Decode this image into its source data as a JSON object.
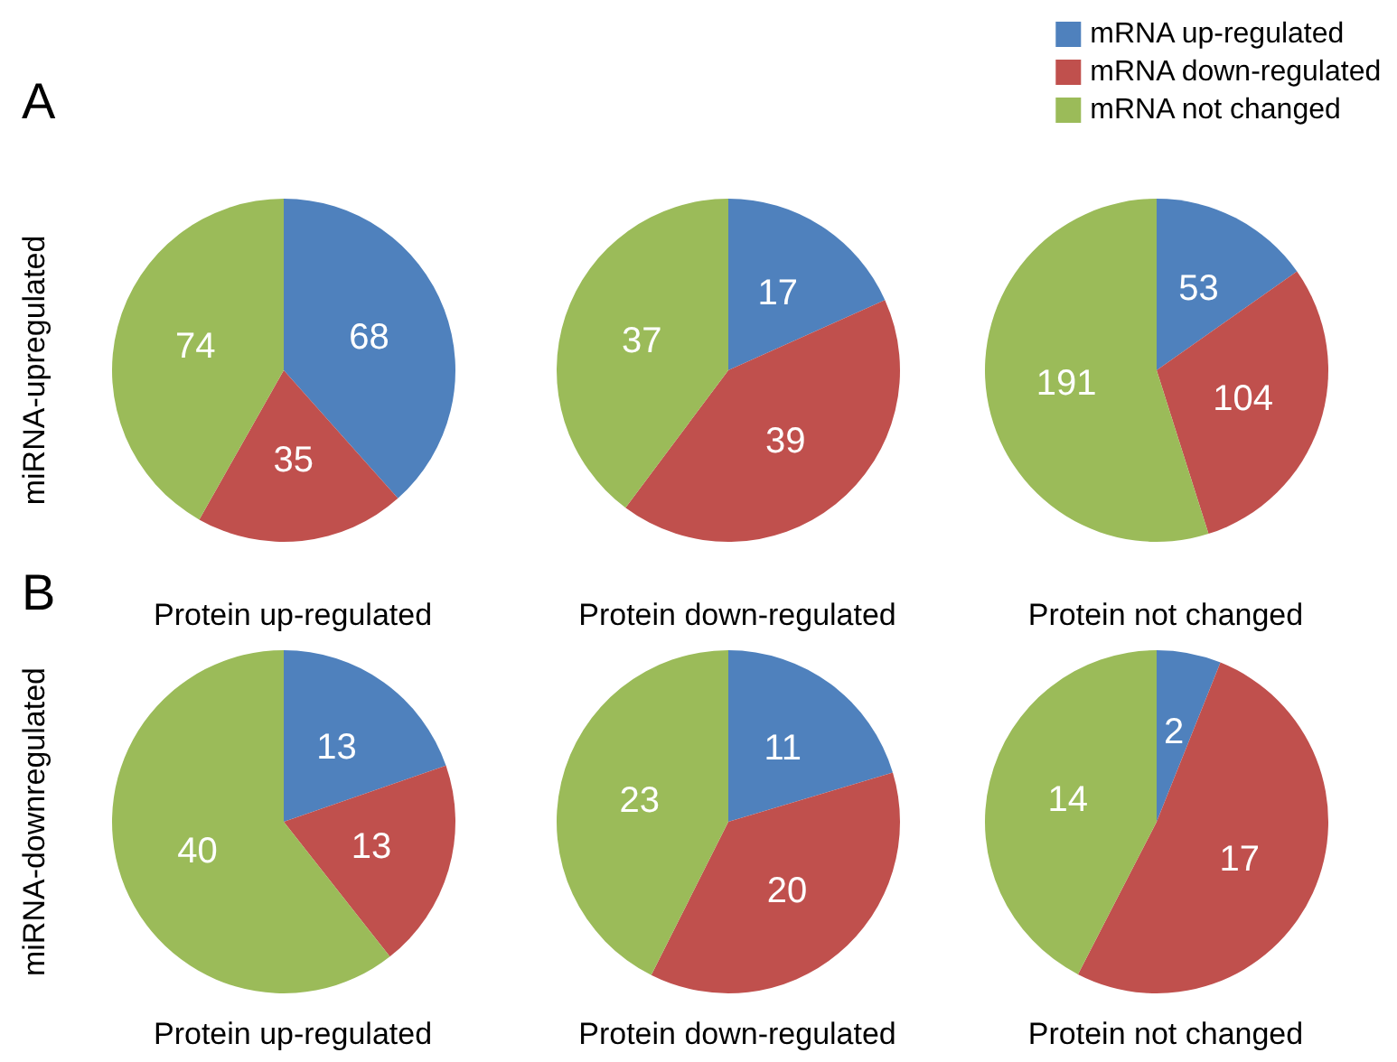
{
  "chart_data": [
    {
      "type": "pie",
      "xlabel": "Protein up-regulated",
      "ylabel": "miRNA-upregulated",
      "annotations": [
        "A"
      ],
      "values": [
        68,
        35,
        74
      ],
      "colors": [
        "#4f81bd",
        "#c0504d",
        "#9bbb59"
      ],
      "data_labels": true
    },
    {
      "type": "pie",
      "xlabel": "Protein down-regulated",
      "values": [
        17,
        39,
        37
      ],
      "colors": [
        "#4f81bd",
        "#c0504d",
        "#9bbb59"
      ],
      "data_labels": true
    },
    {
      "type": "pie",
      "xlabel": "Protein not changed",
      "legend": "top right",
      "categories": [
        "mRNA up-regulated",
        "mRNA down-regulated",
        "mRNA not changed"
      ],
      "values": [
        53,
        104,
        191
      ],
      "colors": [
        "#4f81bd",
        "#c0504d",
        "#9bbb59"
      ],
      "data_labels": true
    },
    {
      "type": "pie",
      "xlabel": "Protein up-regulated",
      "ylabel": "miRNA-downregulated",
      "annotations": [
        "B"
      ],
      "values": [
        13,
        13,
        40
      ],
      "colors": [
        "#4f81bd",
        "#c0504d",
        "#9bbb59"
      ],
      "data_labels": true
    },
    {
      "type": "pie",
      "xlabel": "Protein down-regulated",
      "values": [
        11,
        20,
        23
      ],
      "colors": [
        "#4f81bd",
        "#c0504d",
        "#9bbb59"
      ],
      "data_labels": true
    },
    {
      "type": "pie",
      "xlabel": "Protein not changed",
      "values": [
        2,
        17,
        14
      ],
      "colors": [
        "#4f81bd",
        "#c0504d",
        "#9bbb59"
      ],
      "data_labels": true
    }
  ]
}
